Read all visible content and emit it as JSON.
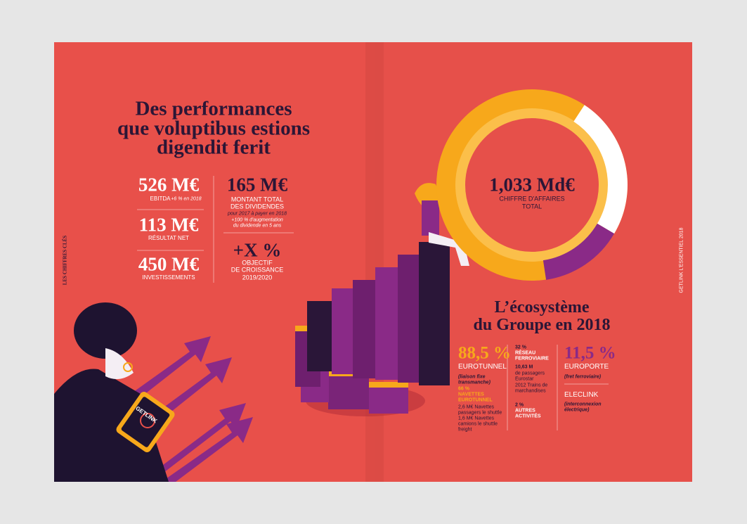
{
  "spread": {
    "left": {
      "side_label": "LES CHIFFRES CLÉS",
      "title": [
        "Des performances",
        "que voluptibus estions",
        "digendit ferit"
      ],
      "ebitda": {
        "value": "526 M€",
        "label": "EBITDA",
        "note": "+6 % en 2018"
      },
      "net_result": {
        "value": "113 M€",
        "label": "RÉSULTAT NET"
      },
      "investments": {
        "value": "450 M€",
        "label": "INVESTISSEMENTS"
      },
      "dividends": {
        "value": "165 M€",
        "label": [
          "MONTANT TOTAL",
          "DES DIVIDENDES"
        ],
        "notes": [
          "pour 2017 à payer en 2018",
          "+100 % d'augmentation",
          "du dividende en 5 ans"
        ]
      },
      "growth": {
        "value": "+X %",
        "label": [
          "OBJECTIF",
          "DE CROISSANCE",
          "2019/2020"
        ]
      },
      "tablet_logo": "GETLINK"
    },
    "right": {
      "side_label": "GETLINK L'ESSENTIEL 2018",
      "revenue": {
        "value": "1,033 Md€",
        "label": [
          "CHIFFRE D'AFFAIRES",
          "TOTAL"
        ]
      },
      "ecosystem_title": [
        "L’écosystème",
        "du Groupe en 2018"
      ],
      "eurotunnel": {
        "value": "88,5 %",
        "label": "EUROTUNNEL",
        "note": [
          "(liaison fixe",
          "transmanche)"
        ],
        "shuttles": {
          "value": "66 %",
          "label": [
            "NAVETTES",
            "EUROTUNNEL"
          ],
          "lines": [
            "2,6 M€ Navettes",
            "passagers le shuttle",
            "1,6 M€ Navettes",
            "camions le shuttle",
            "freight"
          ]
        }
      },
      "rail": {
        "value": "32 %",
        "label": [
          "RÉSEAU",
          "FERROVIAIRE"
        ],
        "lines": [
          "10,63 M",
          "de passagers",
          "Eurostar",
          "2012 Trains de",
          "marchandises"
        ]
      },
      "other": {
        "value": "2 %",
        "label": [
          "AUTRES",
          "ACTIVITÉS"
        ]
      },
      "europorte": {
        "value": "11,5 %",
        "label": "EUROPORTE",
        "note": "(fret ferroviaire)"
      },
      "eleclink": {
        "label": "ELECLINK",
        "note": [
          "(interconnexion",
          "électrique)"
        ]
      }
    }
  }
}
